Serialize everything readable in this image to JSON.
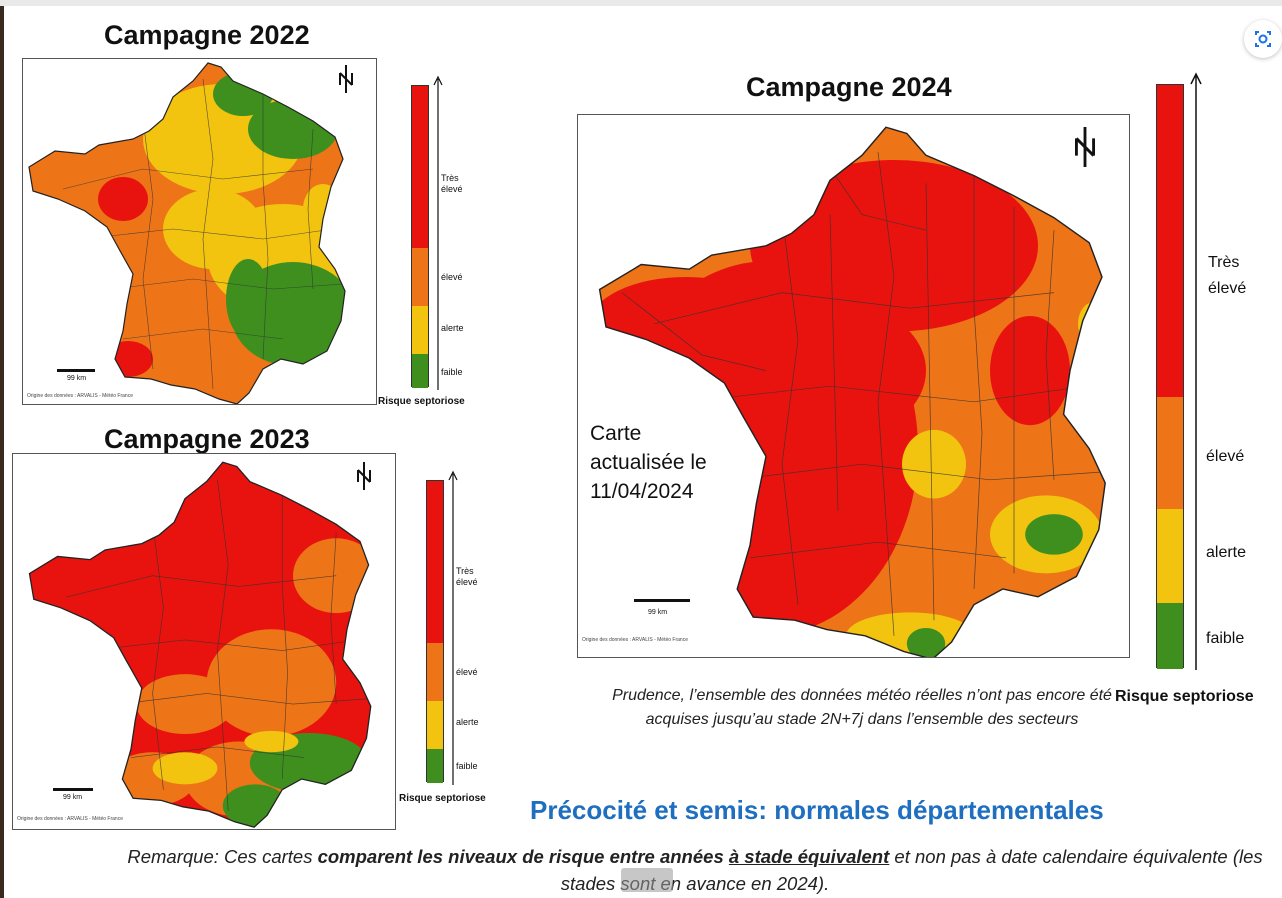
{
  "titles": {
    "c2022": "Campagne 2022",
    "c2023": "Campagne 2023",
    "c2024": "Campagne 2024"
  },
  "legend": {
    "very_high": "Très\nélevé",
    "high": "élevé",
    "alert": "alerte",
    "low": "faible",
    "caption": "Risque septoriose"
  },
  "colors": {
    "very_high": "#e8130e",
    "high": "#ee7418",
    "alert": "#f2c30f",
    "low": "#3f8f1f",
    "heading": "#1f6fc0"
  },
  "map_text": {
    "scale": "99 km",
    "origin": "Origine des données : ARVALIS - Météo France",
    "north": "N"
  },
  "note_2024": "Carte\nactualisée le\n11/04/2024",
  "prudence": "Prudence, l’ensemble des données météo réelles n’ont pas encore été acquises jusqu’au stade 2N+7j dans l’ensemble des secteurs",
  "heading": "Précocité et semis: normales départementales",
  "remark": {
    "p1": "Remarque: Ces cartes ",
    "b1": "comparent les niveaux de risque entre années ",
    "u1": "à stade équivalent",
    "p2": " et non pas à date calendaire équivalente (les stades sont en avance en 2024)."
  },
  "lens_icon": "lens-icon"
}
